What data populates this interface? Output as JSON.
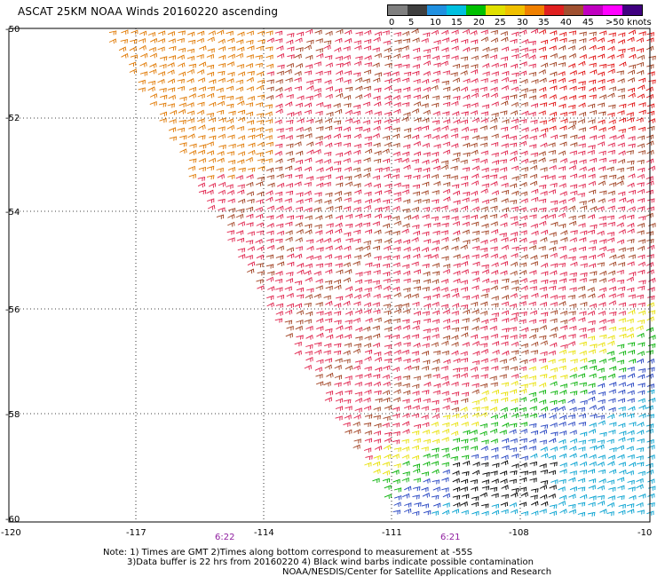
{
  "title": "ASCAT 25KM NOAA Winds 20160220 ascending",
  "legend": {
    "labels": [
      "0",
      "5",
      "10",
      "15",
      "20",
      "25",
      "30",
      "35",
      "40",
      "45",
      ">50 knots"
    ],
    "colors": [
      "#7f7f7f",
      "#3f3f3f",
      "#2090e0",
      "#00c0e0",
      "#00c000",
      "#e0e000",
      "#f0c000",
      "#f08000",
      "#e02020",
      "#a05030",
      "#c000c0",
      "#ff00ff",
      "#400080"
    ]
  },
  "map": {
    "lat_labels": [
      "-50",
      "-52",
      "-54",
      "-56",
      "-58",
      "-60"
    ],
    "lon_labels": [
      "-120",
      "-117",
      "-114",
      "-111",
      "-108",
      "-10"
    ],
    "time_labels": [
      "6:22",
      "6:21"
    ],
    "time_color": "#9020a0"
  },
  "footer": {
    "line1": "Note: 1) Times are GMT 2)Times along bottom correspond to measurement at -55S",
    "line2": "3)Data buffer is 22 hrs from 20160220 4) Black wind barbs indicate possible contamination",
    "line3": "NOAA/NESDIS/Center for Satellite Applications and Research"
  }
}
